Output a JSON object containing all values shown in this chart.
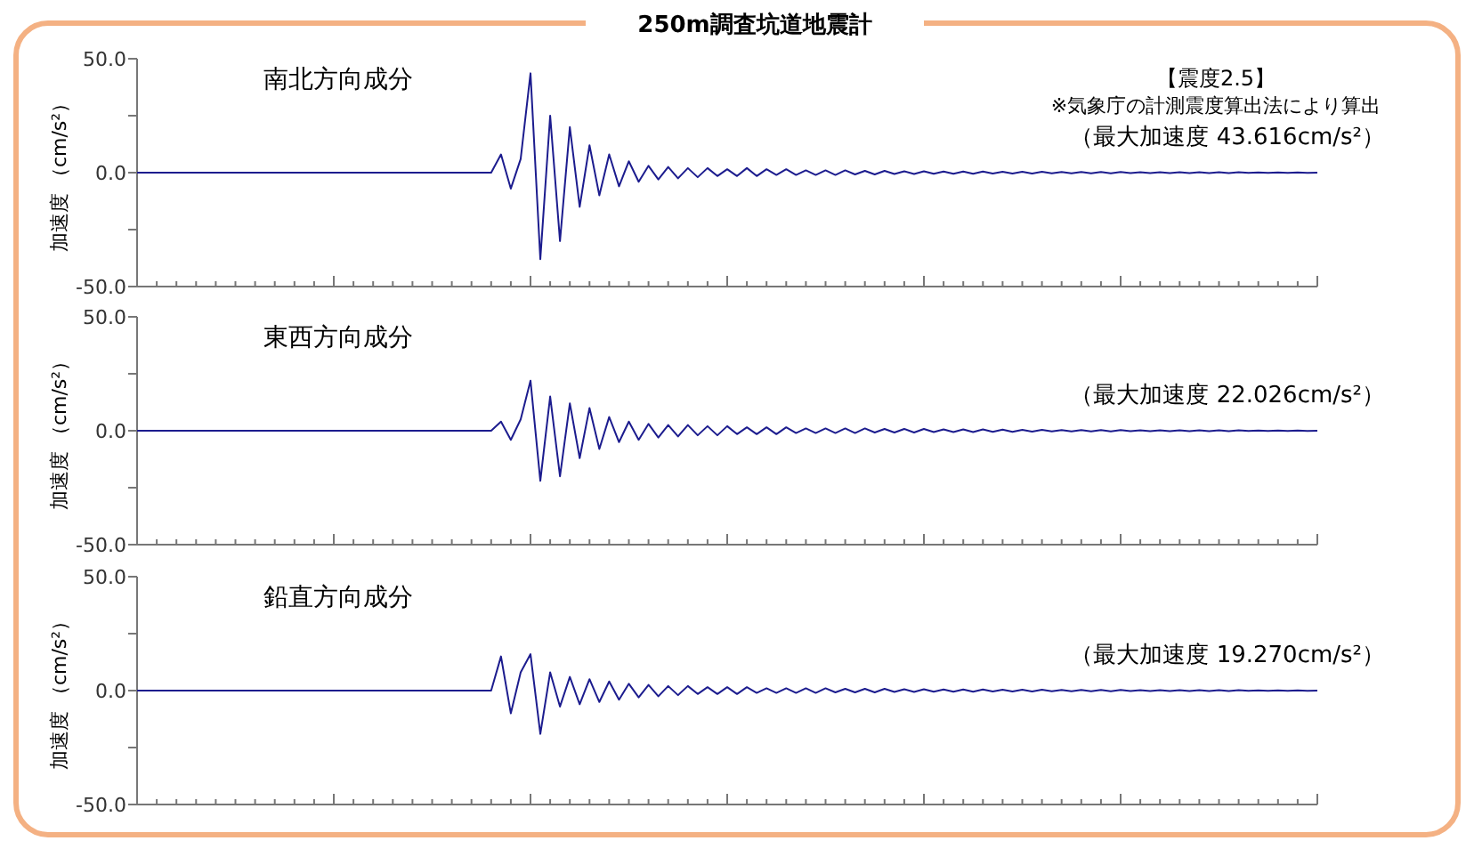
{
  "chart_data": [
    {
      "type": "line",
      "title": "250m調査坑道地震計",
      "subtitle": "南北方向成分",
      "ylabel": "加速度 （cm/s²）",
      "tick_labels": "y",
      "annotations": [
        "【震度2.5】",
        "※気象庁の計測震度算出法により算出",
        "（最大加速度 43.616cm/s²）"
      ],
      "ylim": [
        -50,
        50
      ],
      "yticks": [
        {
          "value": -50,
          "label": "-50.0"
        },
        {
          "value": -25,
          "label": null
        },
        {
          "value": 0,
          "label": "0.0"
        },
        {
          "value": 25,
          "label": null
        },
        {
          "value": 50,
          "label": "50.0"
        }
      ],
      "categories": [
        null,
        null,
        null,
        null,
        null,
        null,
        null,
        null,
        null,
        null,
        null,
        null,
        null,
        null,
        null,
        null,
        null,
        null,
        null,
        null,
        null,
        null,
        null,
        null,
        null,
        null,
        null,
        null,
        null,
        null,
        null,
        null,
        null,
        null,
        null,
        null,
        null,
        null,
        null,
        null,
        null,
        null,
        null,
        null,
        null,
        null,
        null,
        null,
        null,
        null,
        null,
        null,
        null,
        null,
        null,
        null,
        null,
        null,
        null,
        null,
        null,
        null,
        null,
        null,
        null,
        null,
        null,
        null,
        null,
        null,
        null,
        null,
        null,
        null,
        null,
        null,
        null,
        null,
        null,
        null,
        null,
        null,
        null,
        null,
        null,
        null,
        null,
        null,
        null,
        null,
        null,
        null,
        null,
        null,
        null,
        null,
        null,
        null,
        null,
        null,
        null,
        null,
        null,
        null,
        null,
        null,
        null,
        null,
        null,
        null,
        null,
        null,
        null,
        null,
        null,
        null,
        null,
        null,
        null,
        null,
        null
      ],
      "series": [
        {
          "color": "#1c1c8e",
          "values": [
            0,
            0,
            0,
            0,
            0,
            0,
            0,
            0,
            0,
            0,
            0,
            0,
            0,
            0,
            0,
            0,
            0,
            0,
            0,
            0,
            0,
            0,
            0,
            0,
            0,
            0,
            0,
            0,
            0,
            0,
            0,
            0,
            0,
            0,
            0,
            0,
            0,
            8,
            -7,
            6,
            43.6,
            -38,
            25,
            -30,
            20,
            -15,
            12,
            -10,
            8,
            -6,
            5,
            -4,
            3,
            -3,
            2.5,
            -2.5,
            2,
            -2,
            2,
            -1.5,
            1.5,
            -1.5,
            2,
            -1.5,
            1.5,
            -1,
            1.5,
            -1,
            1,
            -1,
            1,
            -1,
            1,
            -0.8,
            0.8,
            -0.8,
            0.8,
            -0.6,
            0.6,
            -0.6,
            0.6,
            -0.5,
            0.5,
            -0.5,
            0.5,
            -0.5,
            0.5,
            -0.4,
            0.4,
            -0.4,
            0.4,
            -0.4,
            0.4,
            -0.3,
            0.3,
            -0.3,
            0.3,
            -0.3,
            0.3,
            -0.3,
            0.3,
            -0.2,
            0.2,
            -0.2,
            0.2,
            -0.2,
            0.2,
            -0.2,
            0.2,
            -0.2,
            0.2,
            -0.2,
            0.2,
            -0.1,
            0.1,
            -0.1,
            0.1,
            -0.1,
            0.1,
            -0.1,
            0
          ]
        }
      ]
    },
    {
      "type": "line",
      "subtitle": "東西方向成分",
      "ylabel": "加速度 （cm/s²）",
      "tick_labels": "y",
      "annotations": [
        "（最大加速度 22.026cm/s²）"
      ],
      "ylim": [
        -50,
        50
      ],
      "yticks": [
        {
          "value": -50,
          "label": "-50.0"
        },
        {
          "value": -25,
          "label": null
        },
        {
          "value": 0,
          "label": "0.0"
        },
        {
          "value": 25,
          "label": null
        },
        {
          "value": 50,
          "label": "50.0"
        }
      ],
      "categories": [
        null,
        null,
        null,
        null,
        null,
        null,
        null,
        null,
        null,
        null,
        null,
        null,
        null,
        null,
        null,
        null,
        null,
        null,
        null,
        null,
        null,
        null,
        null,
        null,
        null,
        null,
        null,
        null,
        null,
        null,
        null,
        null,
        null,
        null,
        null,
        null,
        null,
        null,
        null,
        null,
        null,
        null,
        null,
        null,
        null,
        null,
        null,
        null,
        null,
        null,
        null,
        null,
        null,
        null,
        null,
        null,
        null,
        null,
        null,
        null,
        null,
        null,
        null,
        null,
        null,
        null,
        null,
        null,
        null,
        null,
        null,
        null,
        null,
        null,
        null,
        null,
        null,
        null,
        null,
        null,
        null,
        null,
        null,
        null,
        null,
        null,
        null,
        null,
        null,
        null,
        null,
        null,
        null,
        null,
        null,
        null,
        null,
        null,
        null,
        null,
        null,
        null,
        null,
        null,
        null,
        null,
        null,
        null,
        null,
        null,
        null,
        null,
        null,
        null,
        null,
        null,
        null,
        null,
        null,
        null,
        null
      ],
      "series": [
        {
          "color": "#1c1c8e",
          "values": [
            0,
            0,
            0,
            0,
            0,
            0,
            0,
            0,
            0,
            0,
            0,
            0,
            0,
            0,
            0,
            0,
            0,
            0,
            0,
            0,
            0,
            0,
            0,
            0,
            0,
            0,
            0,
            0,
            0,
            0,
            0,
            0,
            0,
            0,
            0,
            0,
            0,
            4,
            -4,
            5,
            22,
            -22,
            15,
            -20,
            12,
            -12,
            10,
            -8,
            6,
            -5,
            4,
            -4,
            3,
            -3,
            2.5,
            -2.5,
            2.5,
            -2,
            2,
            -2,
            2,
            -1.5,
            1.5,
            -1.5,
            1.5,
            -1.5,
            1.5,
            -1,
            1,
            -1,
            1,
            -1,
            1,
            -1,
            1,
            -0.8,
            0.8,
            -0.8,
            0.8,
            -0.8,
            0.8,
            -0.6,
            0.6,
            -0.6,
            0.6,
            -0.6,
            0.6,
            -0.5,
            0.5,
            -0.5,
            0.4,
            -0.4,
            0.4,
            -0.3,
            0.3,
            -0.3,
            0.3,
            -0.3,
            0.3,
            -0.3,
            0.3,
            -0.2,
            0.2,
            -0.2,
            0.2,
            -0.2,
            0.2,
            -0.2,
            0.2,
            -0.2,
            0.2,
            -0.2,
            0.2,
            -0.1,
            0.1,
            -0.1,
            0.1,
            -0.1,
            0.1,
            -0.1,
            0
          ]
        }
      ]
    },
    {
      "type": "line",
      "subtitle": "鉛直方向成分",
      "ylabel": "加速度 （cm/s²）",
      "tick_labels": "y",
      "annotations": [
        "（最大加速度 19.270cm/s²）"
      ],
      "ylim": [
        -50,
        50
      ],
      "yticks": [
        {
          "value": -50,
          "label": "-50.0"
        },
        {
          "value": -25,
          "label": null
        },
        {
          "value": 0,
          "label": "0.0"
        },
        {
          "value": 25,
          "label": null
        },
        {
          "value": 50,
          "label": "50.0"
        }
      ],
      "categories": [
        null,
        null,
        null,
        null,
        null,
        null,
        null,
        null,
        null,
        null,
        null,
        null,
        null,
        null,
        null,
        null,
        null,
        null,
        null,
        null,
        null,
        null,
        null,
        null,
        null,
        null,
        null,
        null,
        null,
        null,
        null,
        null,
        null,
        null,
        null,
        null,
        null,
        null,
        null,
        null,
        null,
        null,
        null,
        null,
        null,
        null,
        null,
        null,
        null,
        null,
        null,
        null,
        null,
        null,
        null,
        null,
        null,
        null,
        null,
        null,
        null,
        null,
        null,
        null,
        null,
        null,
        null,
        null,
        null,
        null,
        null,
        null,
        null,
        null,
        null,
        null,
        null,
        null,
        null,
        null,
        null,
        null,
        null,
        null,
        null,
        null,
        null,
        null,
        null,
        null,
        null,
        null,
        null,
        null,
        null,
        null,
        null,
        null,
        null,
        null,
        null,
        null,
        null,
        null,
        null,
        null,
        null,
        null,
        null,
        null,
        null,
        null,
        null,
        null,
        null,
        null,
        null,
        null,
        null,
        null,
        null
      ],
      "series": [
        {
          "color": "#1c1c8e",
          "values": [
            0,
            0,
            0,
            0,
            0,
            0,
            0,
            0,
            0,
            0,
            0,
            0,
            0,
            0,
            0,
            0,
            0,
            0,
            0,
            0,
            0,
            0,
            0,
            0,
            0,
            0,
            0,
            0,
            0,
            0,
            0,
            0,
            0,
            0,
            0,
            0,
            0,
            15,
            -10,
            8,
            16,
            -19,
            8,
            -7,
            6,
            -6,
            5,
            -5,
            4,
            -4,
            3,
            -3,
            2.5,
            -2.5,
            2,
            -2,
            2,
            -1.5,
            1.5,
            -1.5,
            1.5,
            -1.5,
            1.5,
            -1,
            1,
            -1,
            1,
            -1,
            1,
            -1,
            1,
            -0.8,
            0.8,
            -0.8,
            0.8,
            -0.8,
            0.8,
            -0.6,
            0.6,
            -0.6,
            0.6,
            -0.5,
            0.5,
            -0.5,
            0.5,
            -0.5,
            0.5,
            -0.4,
            0.4,
            -0.4,
            0.4,
            -0.4,
            0.4,
            -0.3,
            0.3,
            -0.3,
            0.3,
            -0.3,
            0.3,
            -0.3,
            0.3,
            -0.2,
            0.2,
            -0.2,
            0.2,
            -0.2,
            0.2,
            -0.2,
            0.2,
            -0.2,
            0.2,
            -0.2,
            0.2,
            -0.1,
            0.1,
            -0.1,
            0.1,
            -0.1,
            0.1,
            -0.1,
            0
          ]
        }
      ]
    }
  ]
}
